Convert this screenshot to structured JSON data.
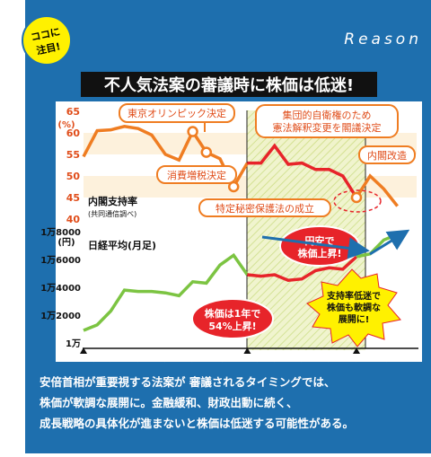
{
  "badge": {
    "line1": "ココに",
    "line2": "注目!"
  },
  "header": {
    "label": "Reason"
  },
  "title": "不人気法案の審議時に株価は低迷!",
  "colors": {
    "frame": "#1e6fae",
    "approval": "#ef7d22",
    "approval_low": "#e7242a",
    "nikkei": "#7cc442",
    "nikkei_low": "#e7242a",
    "callout_red": "#e7242a",
    "callout_yellow": "#fff100",
    "hatch": "#d9e8a8",
    "band": "#fdf1dc"
  },
  "chart_data": [
    {
      "type": "line",
      "title": "内閣支持率",
      "subtitle": "(共同通信調べ)",
      "ylabel": "(%)",
      "ylim": [
        40,
        65
      ],
      "yticks": [
        "65",
        "60",
        "55",
        "50",
        "45",
        "40"
      ],
      "series": [
        {
          "name": "内閣支持率",
          "x": [
            "13-01",
            "13-02",
            "13-03",
            "13-04",
            "13-05",
            "13-06",
            "13-07",
            "13-08",
            "13-09",
            "13-10",
            "13-11",
            "13-12",
            "14-01",
            "14-02",
            "14-03",
            "14-04",
            "14-05",
            "14-06",
            "14-07",
            "14-08",
            "14-09",
            "14-10",
            "14-11",
            "14-12"
          ],
          "values": [
            54.5,
            60.5,
            60.7,
            61.5,
            61,
            59.5,
            55,
            53.7,
            60.3,
            55.5,
            54,
            47.5,
            53,
            53,
            57,
            52.7,
            53,
            51.5,
            51.5,
            50,
            45,
            50,
            47,
            43
          ]
        }
      ],
      "annotations": [
        {
          "text": "東京オリンピック決定",
          "x": "13-09"
        },
        {
          "text": "消費増税決定",
          "x": "13-10"
        },
        {
          "text": "特定秘密保護法の成立",
          "x": "13-12"
        },
        {
          "text": "集団的自衛権のため\n憲法解釈変更を閣議決定",
          "x": "14-07"
        },
        {
          "text": "内閣改造",
          "x": "14-09"
        }
      ]
    },
    {
      "type": "line",
      "title": "日経平均(月足)",
      "ylabel": "(円)",
      "ylim": [
        10000,
        18000
      ],
      "yticks": [
        "1万8000",
        "1万6000",
        "1万4000",
        "1万2000",
        "1万"
      ],
      "xticks": [
        "13年1月",
        "3月",
        "5月",
        "7月",
        "9月",
        "11月",
        "14年1月",
        "3月",
        "5月",
        "7月",
        "9月",
        "11月"
      ],
      "series": [
        {
          "name": "日経平均",
          "x": [
            "13-01",
            "13-02",
            "13-03",
            "13-04",
            "13-05",
            "13-06",
            "13-07",
            "13-08",
            "13-09",
            "13-10",
            "13-11",
            "13-12",
            "14-01",
            "14-02",
            "14-03",
            "14-04",
            "14-05",
            "14-06",
            "14-07",
            "14-08",
            "14-09",
            "14-10",
            "14-11",
            "14-12"
          ],
          "values": [
            10900,
            11300,
            12300,
            13800,
            13700,
            13700,
            13600,
            13400,
            14400,
            14300,
            15600,
            16300,
            14900,
            14800,
            14900,
            14500,
            14600,
            15200,
            15400,
            15300,
            16200,
            16400,
            17400,
            17800
          ]
        }
      ],
      "annotations": [
        {
          "text": "株価は1年で\n54%上昇!"
        },
        {
          "text": "円安で\n株価上昇!"
        },
        {
          "text": "支持率低迷で\n株価も軟調な\n展開に!"
        }
      ]
    }
  ],
  "footer": {
    "line1": "安倍首相が重要視する法案が 審議されるタイミングでは、",
    "line2": "株価が軟調な展開に。金融緩和、財政出動に続く、",
    "line3": "成長戦略の具体化が進まないと株価は低迷する可能性がある。"
  }
}
